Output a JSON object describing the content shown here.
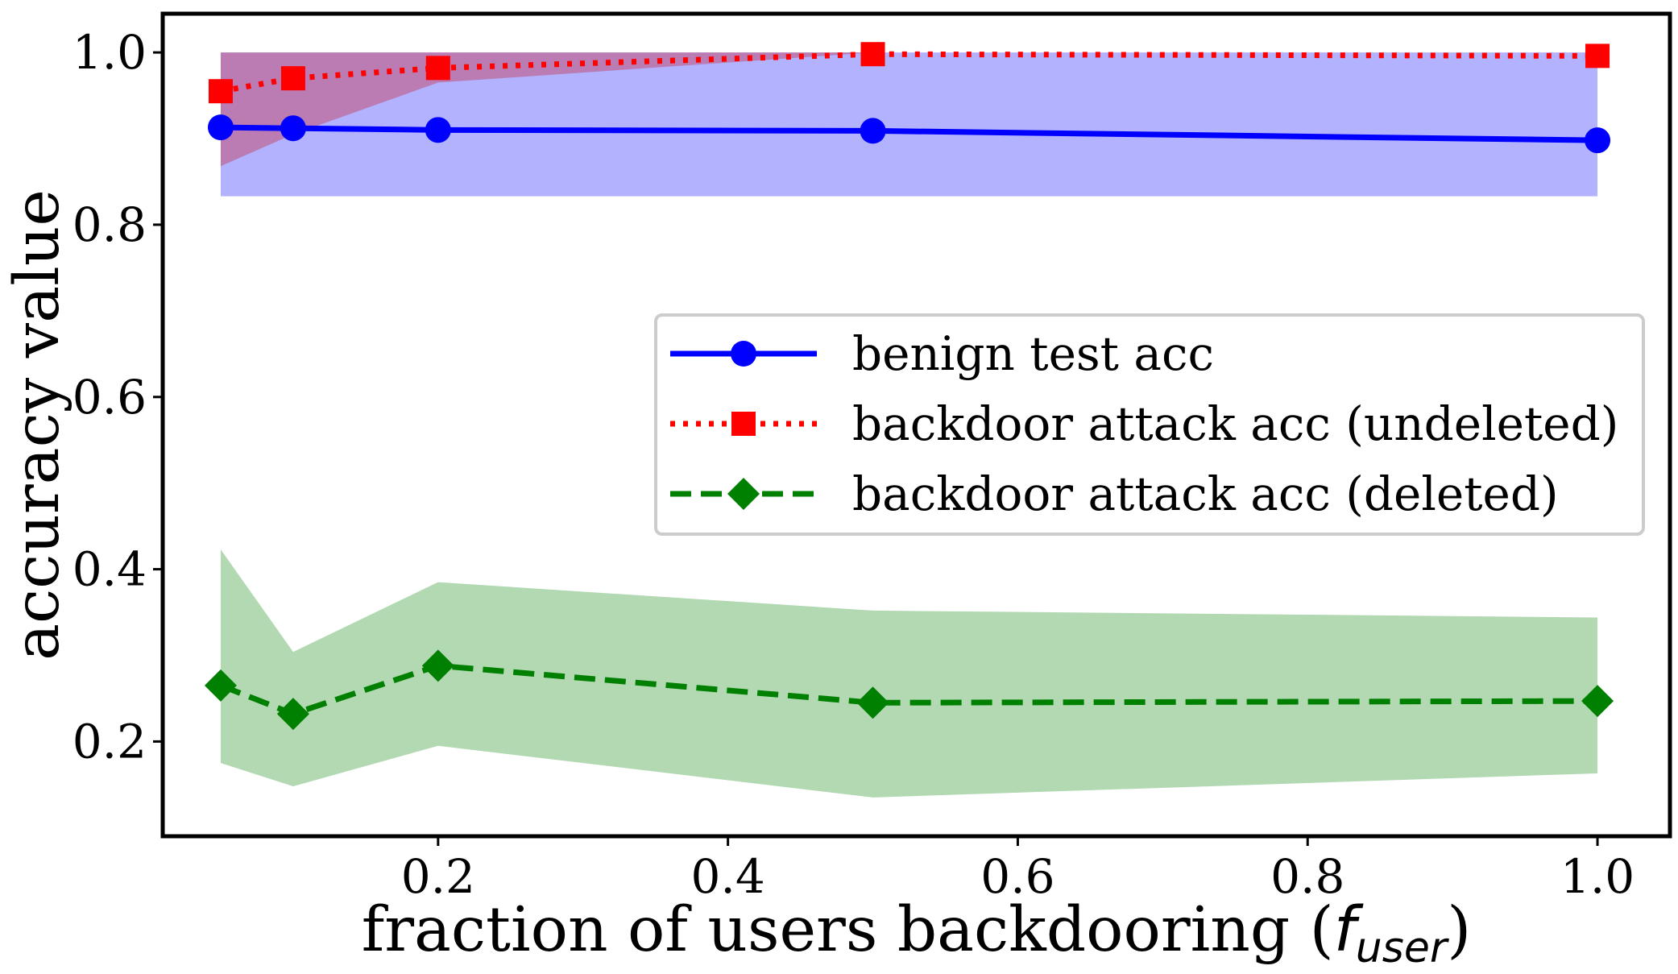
{
  "chart_data": {
    "type": "line",
    "xlabel": "fraction of users backdooring (",
    "xlabel_var": "f",
    "xlabel_sub": "user",
    "xlabel_close": ")",
    "ylabel": "accuracy value",
    "xlim": [
      0.01,
      1.05
    ],
    "ylim": [
      0.09,
      1.045
    ],
    "xticks": [
      0.2,
      0.4,
      0.6,
      0.8,
      1.0
    ],
    "xtick_labels": [
      "0.2",
      "0.4",
      "0.6",
      "0.8",
      "1.0"
    ],
    "yticks": [
      0.2,
      0.4,
      0.6,
      0.8,
      1.0
    ],
    "ytick_labels": [
      "0.2",
      "0.4",
      "0.6",
      "0.8",
      "1.0"
    ],
    "grid": false,
    "legend_position": "center-right",
    "x": [
      0.05,
      0.1,
      0.2,
      0.5,
      1.0
    ],
    "series": [
      {
        "name": "benign test acc",
        "color": "#0000ff",
        "linestyle": "solid",
        "marker": "circle",
        "values": [
          0.913,
          0.912,
          0.91,
          0.909,
          0.898
        ],
        "band_color": "#0000ff",
        "band_opacity": 0.3,
        "band_lower": [
          0.833,
          0.833,
          0.833,
          0.833,
          0.833
        ],
        "band_upper": [
          1.0,
          1.0,
          1.0,
          1.0,
          1.0
        ]
      },
      {
        "name": "backdoor attack acc (undeleted)",
        "color": "#ff0000",
        "linestyle": "dotted",
        "marker": "square",
        "values": [
          0.955,
          0.97,
          0.982,
          0.998,
          0.996
        ],
        "band_color": "#cc0000",
        "band_opacity": 0.3,
        "band_lower": [
          0.868,
          0.905,
          0.965,
          1.0,
          1.0
        ],
        "band_upper": [
          1.0,
          1.0,
          1.0,
          1.0,
          1.0
        ]
      },
      {
        "name": "backdoor attack acc (deleted)",
        "color": "#008000",
        "linestyle": "dashed",
        "marker": "diamond",
        "values": [
          0.265,
          0.232,
          0.288,
          0.245,
          0.247
        ],
        "band_color": "#008000",
        "band_opacity": 0.3,
        "band_lower": [
          0.175,
          0.148,
          0.195,
          0.135,
          0.163
        ],
        "band_upper": [
          0.423,
          0.304,
          0.385,
          0.352,
          0.344
        ]
      }
    ]
  }
}
